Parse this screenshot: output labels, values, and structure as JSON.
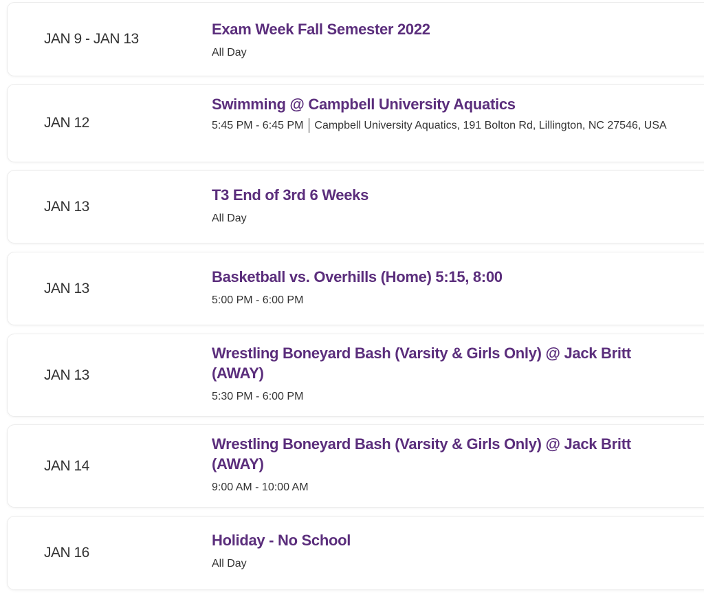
{
  "events": [
    {
      "date": "JAN 9 - JAN 13",
      "title": "Exam Week Fall Semester 2022",
      "time": "All Day"
    },
    {
      "date": "JAN 12",
      "title": "Swimming @ Campbell University Aquatics",
      "time": "5:45 PM - 6:45 PM",
      "location": "Campbell University Aquatics, 191 Bolton Rd, Lillington, NC 27546, USA"
    },
    {
      "date": "JAN 13",
      "title": "T3 End of 3rd 6 Weeks",
      "time": "All Day"
    },
    {
      "date": "JAN 13",
      "title": "Basketball vs. Overhills (Home) 5:15, 8:00",
      "time": "5:00 PM - 6:00 PM"
    },
    {
      "date": "JAN 13",
      "title": "Wrestling Boneyard Bash (Varsity & Girls Only) @ Jack Britt (AWAY)",
      "time": "5:30 PM - 6:00 PM"
    },
    {
      "date": "JAN 14",
      "title": "Wrestling Boneyard Bash (Varsity & Girls Only) @ Jack Britt (AWAY)",
      "time": "9:00 AM - 10:00 AM"
    },
    {
      "date": "JAN 16",
      "title": "Holiday - No School",
      "time": "All Day"
    }
  ],
  "colors": {
    "title": "#5b2e7c",
    "text": "#333333"
  }
}
